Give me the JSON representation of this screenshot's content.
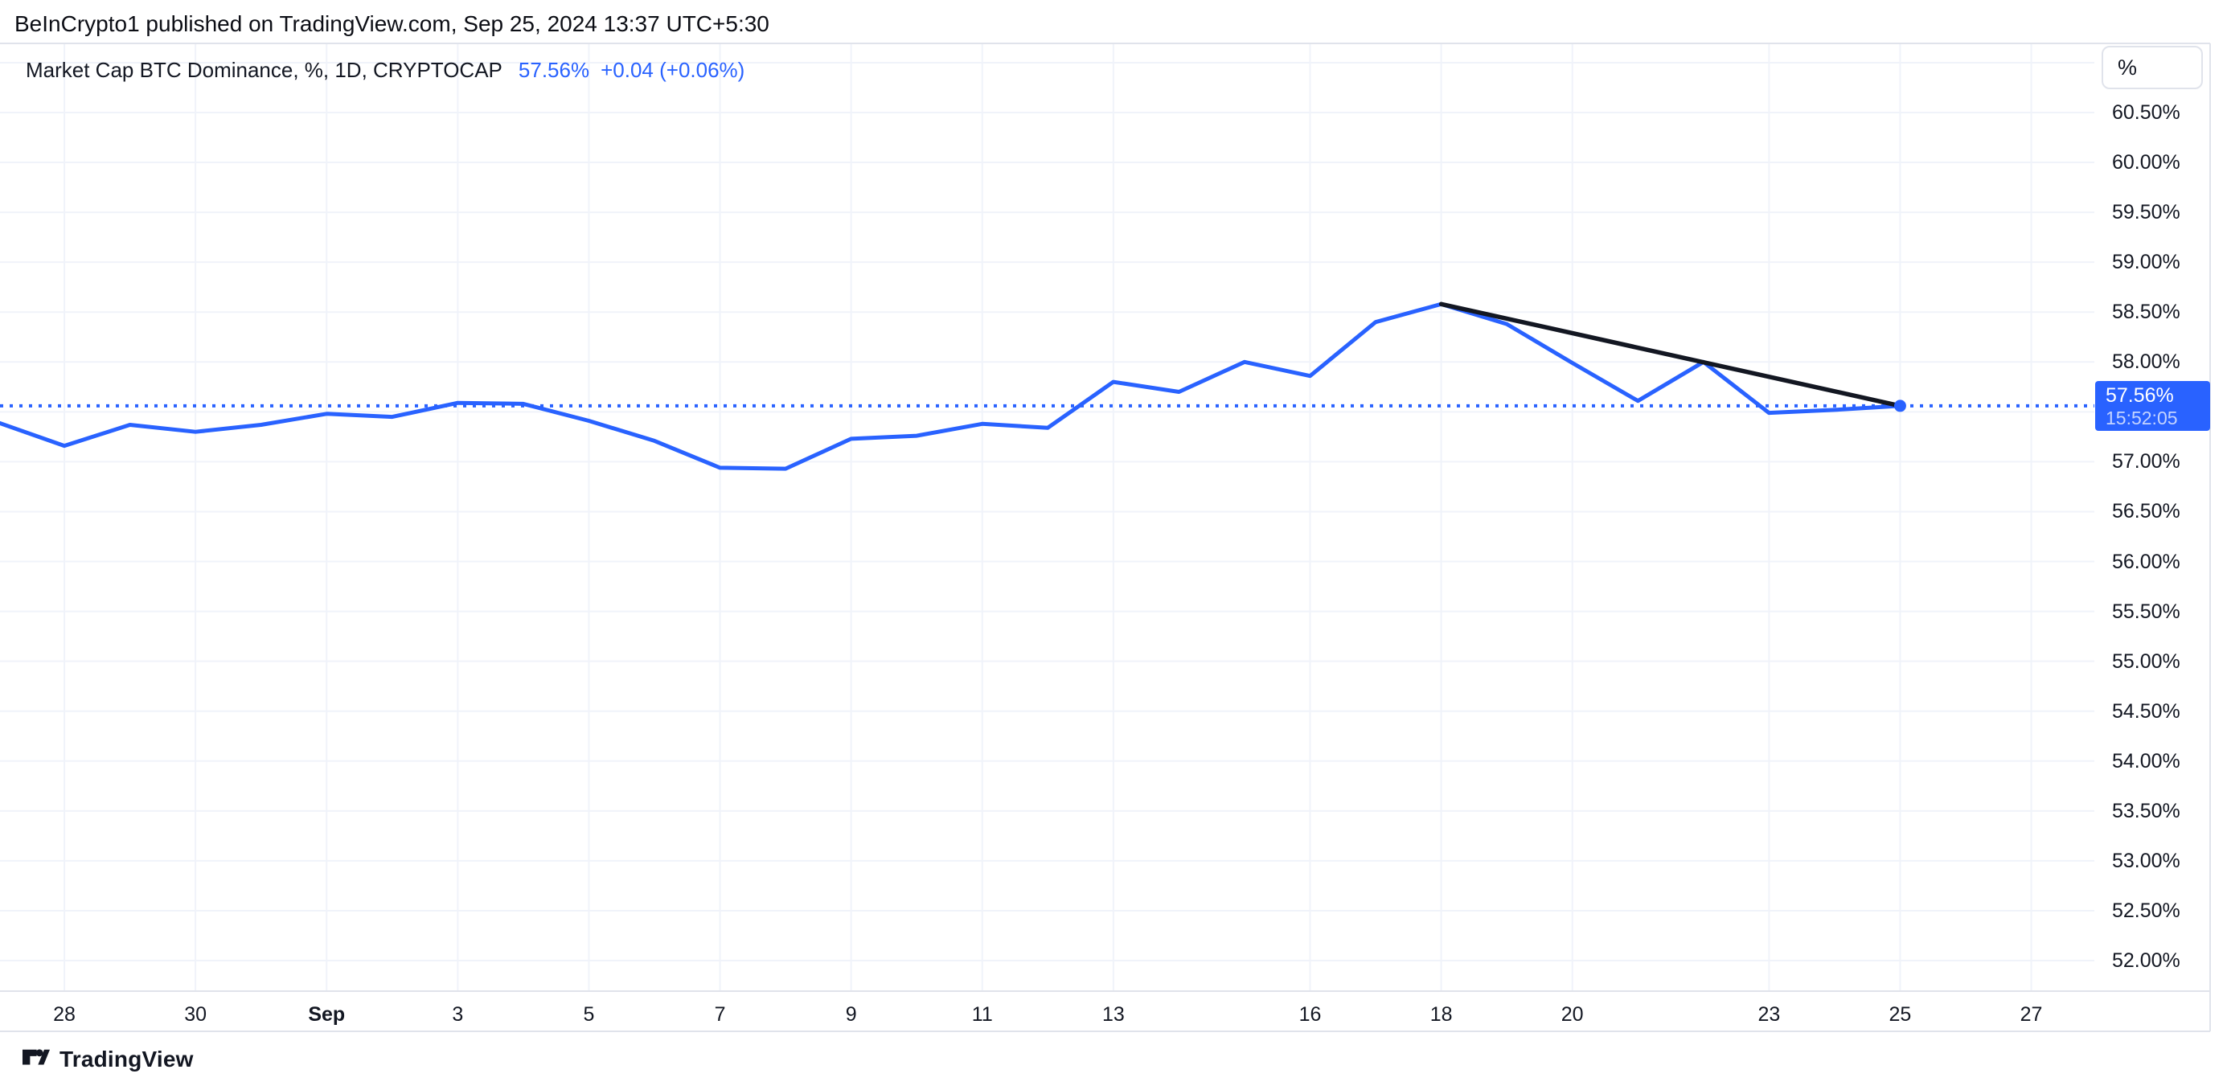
{
  "header": {
    "attribution": "BeInCrypto1 published on TradingView.com, Sep 25, 2024 13:37 UTC+5:30"
  },
  "legend": {
    "title": "Market Cap BTC Dominance, %, 1D, CRYPTOCAP",
    "value": "57.56%",
    "change": "+0.04 (+0.06%)"
  },
  "price_scale": {
    "unit_button": "%",
    "labels": [
      "60.50%",
      "60.00%",
      "59.50%",
      "59.00%",
      "58.50%",
      "58.00%",
      "57.00%",
      "56.50%",
      "56.00%",
      "55.50%",
      "55.00%",
      "54.50%",
      "54.00%",
      "53.50%",
      "53.00%",
      "52.50%",
      "52.00%"
    ],
    "price_label": {
      "value": "57.56%",
      "time": "15:52:05"
    }
  },
  "time_scale": {
    "labels": [
      {
        "text": "28",
        "day_index": 1,
        "bold": false
      },
      {
        "text": "30",
        "day_index": 3,
        "bold": false
      },
      {
        "text": "Sep",
        "day_index": 5,
        "bold": true
      },
      {
        "text": "3",
        "day_index": 7,
        "bold": false
      },
      {
        "text": "5",
        "day_index": 9,
        "bold": false
      },
      {
        "text": "7",
        "day_index": 11,
        "bold": false
      },
      {
        "text": "9",
        "day_index": 13,
        "bold": false
      },
      {
        "text": "11",
        "day_index": 15,
        "bold": false
      },
      {
        "text": "13",
        "day_index": 17,
        "bold": false
      },
      {
        "text": "16",
        "day_index": 20,
        "bold": false
      },
      {
        "text": "18",
        "day_index": 22,
        "bold": false
      },
      {
        "text": "20",
        "day_index": 24,
        "bold": false
      },
      {
        "text": "23",
        "day_index": 27,
        "bold": false
      },
      {
        "text": "25",
        "day_index": 29,
        "bold": false
      },
      {
        "text": "27",
        "day_index": 31,
        "bold": false
      }
    ]
  },
  "footer": {
    "brand": "TradingView"
  },
  "colors": {
    "accent": "#2962FF",
    "trend_line": "#131722",
    "grid": "#F0F3FA",
    "border": "#E0E3EB",
    "text": "#131722",
    "price_label_bg": "#2962FF"
  },
  "chart_data": {
    "type": "line",
    "title": "Market Cap BTC Dominance, %, 1D, CRYPTOCAP",
    "symbol": "CRYPTOCAP",
    "interval": "1D",
    "unit": "%",
    "x": [
      "Aug 27",
      "Aug 28",
      "Aug 29",
      "Aug 30",
      "Aug 31",
      "Sep 1",
      "Sep 2",
      "Sep 3",
      "Sep 4",
      "Sep 5",
      "Sep 6",
      "Sep 7",
      "Sep 8",
      "Sep 9",
      "Sep 10",
      "Sep 11",
      "Sep 12",
      "Sep 13",
      "Sep 14",
      "Sep 15",
      "Sep 16",
      "Sep 17",
      "Sep 18",
      "Sep 19",
      "Sep 20",
      "Sep 21",
      "Sep 22",
      "Sep 23",
      "Sep 24",
      "Sep 25"
    ],
    "values": [
      57.39,
      57.16,
      57.37,
      57.3,
      57.37,
      57.48,
      57.45,
      57.59,
      57.58,
      57.41,
      57.21,
      56.94,
      56.93,
      57.23,
      57.26,
      57.38,
      57.34,
      57.8,
      57.7,
      58.0,
      57.86,
      58.4,
      58.58,
      58.38,
      57.99,
      57.61,
      58.0,
      57.49,
      57.52,
      57.56
    ],
    "current": {
      "value": 57.56,
      "label": "57.56%",
      "time": "15:52:05",
      "change": "+0.04 (+0.06%)"
    },
    "trend_line": {
      "from": {
        "x": "Sep 18",
        "value": 58.58
      },
      "to": {
        "x": "Sep 25",
        "value": 57.56
      }
    },
    "y_axis": {
      "tick_step": 0.5,
      "top_grid_value": 61.0,
      "bottom_grid_value": 52.0,
      "visible_range_approx": [
        51.7,
        61.1
      ]
    },
    "grid": true,
    "legend_position": "top-left",
    "last_point_marker": true,
    "current_price_line": "dotted"
  }
}
